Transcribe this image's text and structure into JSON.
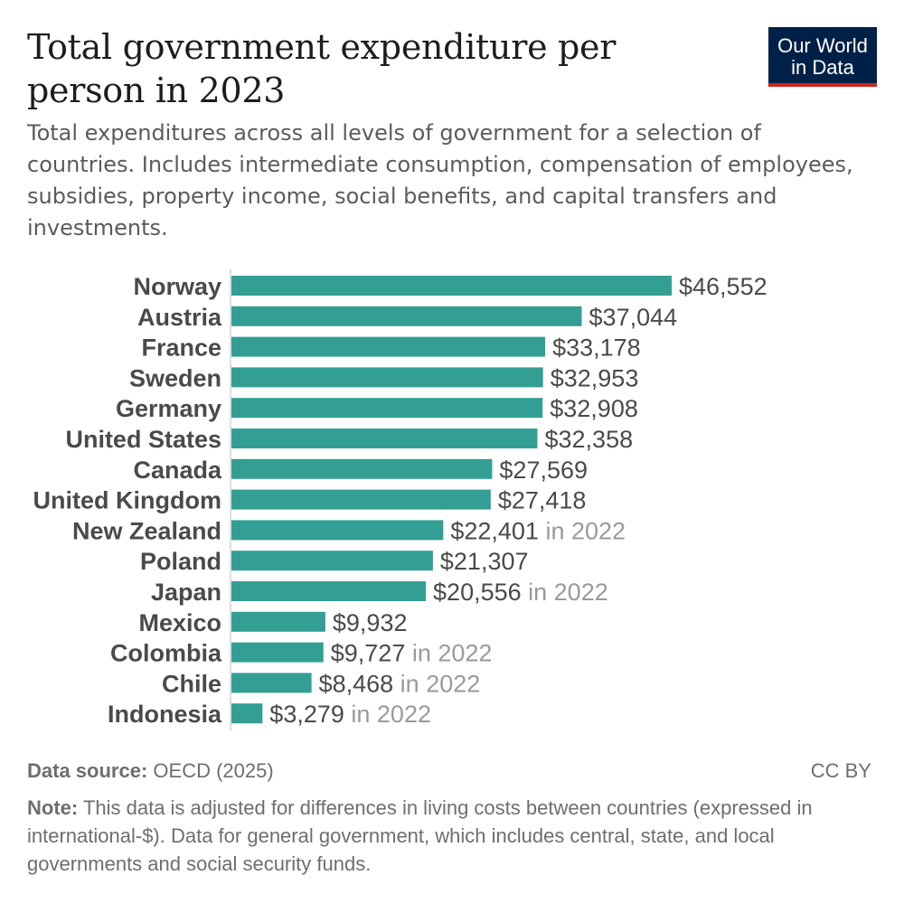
{
  "header": {
    "title": "Total government expenditure per person in 2023",
    "subtitle": "Total expenditures across all levels of government for a selection of countries. Includes intermediate consumption, compensation of employees, subsidies, property income, social benefits, and capital transfers and investments."
  },
  "logo": {
    "line1": "Our World",
    "line2": "in Data"
  },
  "footer": {
    "source_label": "Data source:",
    "source_value": "OECD (2025)",
    "license": "CC BY",
    "note_label": "Note:",
    "note_text": "This data is adjusted for differences in living costs between countries (expressed in international-$). Data for general government, which includes central, state, and local governments and social security funds."
  },
  "colors": {
    "bar": "#339f94",
    "logo_bg": "#002147",
    "logo_accent": "#ce261e"
  },
  "chart_data": {
    "type": "bar",
    "orientation": "horizontal",
    "title": "Total government expenditure per person in 2023",
    "xlabel": "",
    "ylabel": "",
    "xlim": [
      0,
      46552
    ],
    "grid": false,
    "categories": [
      "Norway",
      "Austria",
      "France",
      "Sweden",
      "Germany",
      "United States",
      "Canada",
      "United Kingdom",
      "New Zealand",
      "Poland",
      "Japan",
      "Mexico",
      "Colombia",
      "Chile",
      "Indonesia"
    ],
    "values": [
      46552,
      37044,
      33178,
      32953,
      32908,
      32358,
      27569,
      27418,
      22401,
      21307,
      20556,
      9932,
      9727,
      8468,
      3279
    ],
    "value_labels": [
      "$46,552",
      "$37,044",
      "$33,178",
      "$32,953",
      "$32,908",
      "$32,358",
      "$27,569",
      "$27,418",
      "$22,401",
      "$21,307",
      "$20,556",
      "$9,932",
      "$9,727",
      "$8,468",
      "$3,279"
    ],
    "year_notes": [
      "",
      "",
      "",
      "",
      "",
      "",
      "",
      "",
      "in 2022",
      "",
      "in 2022",
      "",
      "in 2022",
      "in 2022",
      "in 2022"
    ]
  }
}
